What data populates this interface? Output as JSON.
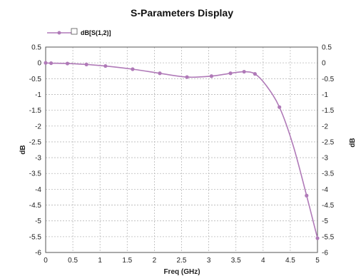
{
  "chart_data": {
    "type": "line",
    "title": "S-Parameters Display",
    "xlabel": "Freq (GHz)",
    "ylabel": "dB",
    "y2label": "dB",
    "xlim": [
      0,
      5
    ],
    "ylim": [
      -6,
      0.5
    ],
    "x_ticks": [
      "0",
      "0.5",
      "1",
      "1.5",
      "2",
      "2.5",
      "3",
      "3.5",
      "4",
      "4.5",
      "5"
    ],
    "y_ticks": [
      "0.5",
      "0",
      "-0.5",
      "-1",
      "-1.5",
      "-2",
      "-2.5",
      "-3",
      "-3.5",
      "-4",
      "-4.5",
      "-5",
      "-5.5",
      "-6"
    ],
    "grid": true,
    "legend_position": "top-left",
    "series": [
      {
        "name": "dB[S(1,2)]",
        "color": "#b07ab8",
        "x": [
          0,
          0.1,
          0.4,
          0.75,
          1.1,
          1.6,
          2.1,
          2.6,
          3.05,
          3.4,
          3.65,
          3.85,
          4.05,
          4.3,
          4.55,
          4.8,
          5.0
        ],
        "y": [
          0,
          -0.01,
          -0.02,
          -0.05,
          -0.1,
          -0.2,
          -0.33,
          -0.45,
          -0.42,
          -0.33,
          -0.28,
          -0.35,
          -0.7,
          -1.4,
          -2.6,
          -4.2,
          -5.55
        ],
        "marker_indices": [
          0,
          1,
          2,
          3,
          4,
          5,
          6,
          7,
          8,
          9,
          10,
          11,
          13,
          15,
          16
        ]
      }
    ]
  }
}
